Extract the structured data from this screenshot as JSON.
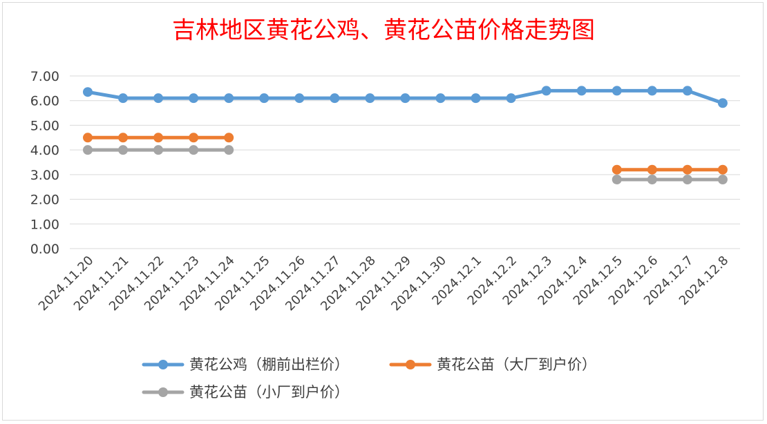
{
  "chart_data": {
    "type": "line",
    "title": "吉林地区黄花公鸡、黄花公苗价格走势图",
    "xlabel": "",
    "ylabel": "",
    "categories": [
      "2024.11.20",
      "2024.11.21",
      "2024.11.22",
      "2024.11.23",
      "2024.11.24",
      "2024.11.25",
      "2024.11.26",
      "2024.11.27",
      "2024.11.28",
      "2024.11.29",
      "2024.11.30",
      "2024.12.1",
      "2024.12.2",
      "2024.12.3",
      "2024.12.4",
      "2024.12.5",
      "2024.12.6",
      "2024.12.7",
      "2024.12.8"
    ],
    "y_tick_labels": [
      "0.00",
      "1.00",
      "2.00",
      "3.00",
      "4.00",
      "5.00",
      "6.00",
      "7.00"
    ],
    "ylim": [
      0,
      7
    ],
    "grid": true,
    "legend_position": "bottom",
    "series": [
      {
        "name": "黄花公鸡（棚前出栏价）",
        "color": "#5b9bd5",
        "values": [
          6.35,
          6.1,
          6.1,
          6.1,
          6.1,
          6.1,
          6.1,
          6.1,
          6.1,
          6.1,
          6.1,
          6.1,
          6.1,
          6.4,
          6.4,
          6.4,
          6.4,
          6.4,
          5.9
        ]
      },
      {
        "name": "黄花公苗（大厂到户价）",
        "color": "#ed7d31",
        "values": [
          4.5,
          4.5,
          4.5,
          4.5,
          4.5,
          null,
          null,
          null,
          null,
          null,
          null,
          null,
          null,
          null,
          null,
          3.2,
          3.2,
          3.2,
          3.2
        ]
      },
      {
        "name": "黄花公苗（小厂到户价）",
        "color": "#a5a5a5",
        "values": [
          4.0,
          4.0,
          4.0,
          4.0,
          4.0,
          null,
          null,
          null,
          null,
          null,
          null,
          null,
          null,
          null,
          null,
          2.8,
          2.8,
          2.8,
          2.8
        ]
      }
    ]
  }
}
